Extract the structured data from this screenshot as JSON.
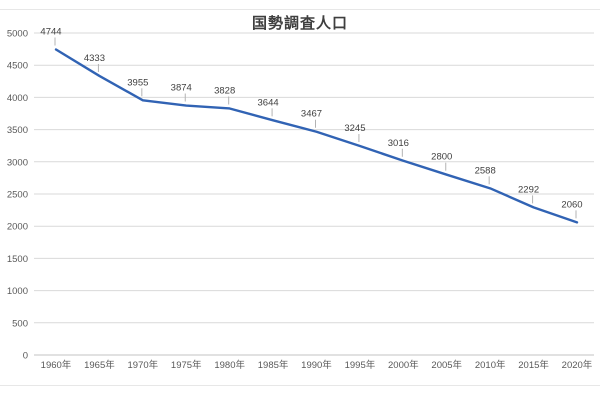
{
  "title": "国勢調査人口",
  "chart_data": {
    "type": "line",
    "title": "国勢調査人口",
    "categories": [
      "1960年",
      "1965年",
      "1970年",
      "1975年",
      "1980年",
      "1985年",
      "1990年",
      "1995年",
      "2000年",
      "2005年",
      "2010年",
      "2015年",
      "2020年"
    ],
    "values": [
      4744,
      4333,
      3955,
      3874,
      3828,
      3644,
      3467,
      3245,
      3016,
      2800,
      2588,
      2292,
      2060
    ],
    "xlabel": "",
    "ylabel": "",
    "ylim": [
      0,
      5000
    ],
    "ytick_step": 500,
    "yticks": [
      0,
      500,
      1000,
      1500,
      2000,
      2500,
      3000,
      3500,
      4000,
      4500,
      5000
    ],
    "grid": "horizontal",
    "legend": false,
    "data_labels": true,
    "leader_lines": true
  },
  "colors": {
    "series_line": "#3163b4",
    "gridline": "#d9d9d9",
    "axis_line": "#c3c3c3",
    "tick_text": "#595959",
    "data_label_text": "#404040",
    "leader_line": "#b3b3b3",
    "title_text": "#3f3f3f",
    "frame_line": "#e7e7e7",
    "background": "#ffffff"
  }
}
